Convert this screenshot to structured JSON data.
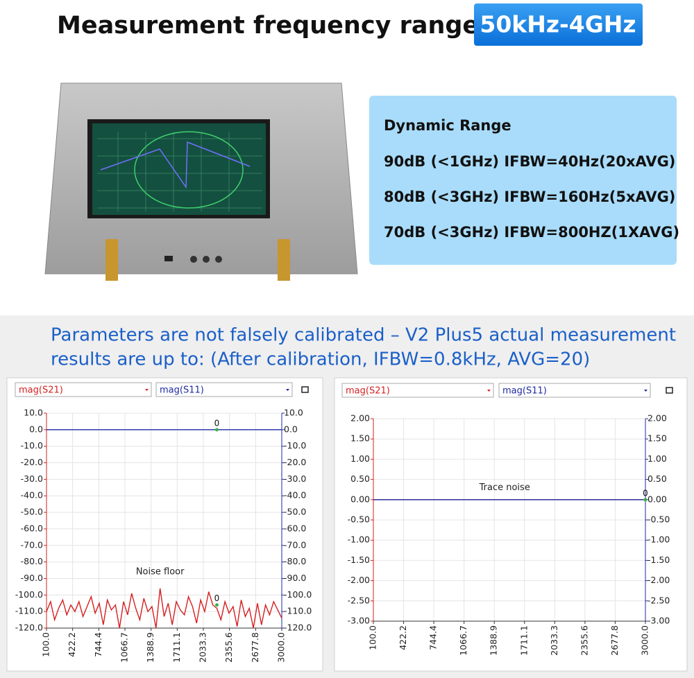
{
  "headline": {
    "title": "Measurement frequency range:",
    "badge": "50kHz-4GHz"
  },
  "dynamic_range": {
    "heading": "Dynamic Range",
    "lines": [
      "90dB (<1GHz) IFBW=40Hz(20xAVG)",
      "80dB (<3GHz) IFBW=160Hz(5xAVG)",
      "70dB (<3GHz) IFBW=800HZ(1XAVG)"
    ]
  },
  "parameters": {
    "lines": [
      "Parameters are not falsely calibrated – V2 Plus5 actual measurement",
      "results are up to: (After calibration, IFBW=0.8kHz, AVG=20)"
    ]
  },
  "chart_data": [
    {
      "type": "line",
      "x": [
        100,
        150,
        200,
        250,
        300,
        350,
        400,
        450,
        500,
        550,
        600,
        650,
        700,
        750,
        800,
        850,
        900,
        950,
        1000,
        1050,
        1100,
        1150,
        1200,
        1250,
        1300,
        1350,
        1400,
        1450,
        1500,
        1550,
        1600,
        1650,
        1700,
        1750,
        1800,
        1850,
        1900,
        1950,
        2000,
        2050,
        2100,
        2150,
        2200,
        2250,
        2300,
        2350,
        2400,
        2450,
        2500,
        2550,
        2600,
        2650,
        2700,
        2750,
        2800,
        2850,
        2900,
        2950,
        3000
      ],
      "series": [
        {
          "name": "mag(S21)",
          "color": "#d42020",
          "values": [
            -110,
            -104,
            -115,
            -108,
            -103,
            -112,
            -106,
            -110,
            -104,
            -113,
            -107,
            -101,
            -111,
            -105,
            -118,
            -103,
            -109,
            -106,
            -120,
            -104,
            -112,
            -99,
            -108,
            -115,
            -102,
            -110,
            -107,
            -120,
            -96,
            -113,
            -105,
            -118,
            -104,
            -109,
            -112,
            -101,
            -107,
            -117,
            -103,
            -110,
            -98,
            -106,
            -108,
            -115,
            -104,
            -111,
            -107,
            -119,
            -103,
            -113,
            -108,
            -120,
            -105,
            -118,
            -106,
            -112,
            -104,
            -109,
            -114
          ]
        },
        {
          "name": "mag(S11)",
          "color": "#1e2aa0",
          "axis": "y2",
          "values": [
            0,
            0,
            0,
            0,
            0,
            0,
            0,
            0,
            0,
            0,
            0,
            0,
            0,
            0,
            0,
            0,
            0,
            0,
            0,
            0,
            0,
            0,
            0,
            0,
            0,
            0,
            0,
            0,
            0,
            0,
            0,
            0,
            0,
            0,
            0,
            0,
            0,
            0,
            0,
            0,
            0,
            0,
            0,
            0,
            0,
            0,
            0,
            0,
            0,
            0,
            0,
            0,
            0,
            0,
            0,
            0,
            0,
            0,
            0
          ]
        }
      ],
      "xlim": [
        100,
        3000
      ],
      "xticks": [
        {
          "value": 100,
          "label": "100.0"
        },
        {
          "value": 422.2,
          "label": "422.2"
        },
        {
          "value": 744.4,
          "label": "744.4"
        },
        {
          "value": 1066.7,
          "label": "1066.7"
        },
        {
          "value": 1388.9,
          "label": "1388.9"
        },
        {
          "value": 1711.1,
          "label": "1711.1"
        },
        {
          "value": 2033.3,
          "label": "2033.3"
        },
        {
          "value": 2355.6,
          "label": "2355.6"
        },
        {
          "value": 2677.8,
          "label": "2677.8"
        },
        {
          "value": 3000,
          "label": "3000.0"
        }
      ],
      "ylim": [
        -120,
        10
      ],
      "yticks": [
        {
          "value": 10,
          "label": "10.0"
        },
        {
          "value": 0,
          "label": "0.0"
        },
        {
          "value": -10,
          "label": "-10.0"
        },
        {
          "value": -20,
          "label": "-20.0"
        },
        {
          "value": -30,
          "label": "-30.0"
        },
        {
          "value": -40,
          "label": "-40.0"
        },
        {
          "value": -50,
          "label": "-50.0"
        },
        {
          "value": -60,
          "label": "-60.0"
        },
        {
          "value": -70,
          "label": "-70.0"
        },
        {
          "value": -80,
          "label": "-80.0"
        },
        {
          "value": -90,
          "label": "-90.0"
        },
        {
          "value": -100,
          "label": "-100.0"
        },
        {
          "value": -110,
          "label": "-110.0"
        },
        {
          "value": -120,
          "label": "-120.0"
        }
      ],
      "y2lim": [
        -120,
        10
      ],
      "y2ticks": [
        {
          "value": 10,
          "label": "10.0"
        },
        {
          "value": 0,
          "label": "0.0"
        },
        {
          "value": -10,
          "label": "-10.0"
        },
        {
          "value": -20,
          "label": "-20.0"
        },
        {
          "value": -30,
          "label": "-30.0"
        },
        {
          "value": -40,
          "label": "-40.0"
        },
        {
          "value": -50,
          "label": "-50.0"
        },
        {
          "value": -60,
          "label": "-60.0"
        },
        {
          "value": -70,
          "label": "-70.0"
        },
        {
          "value": -80,
          "label": "-80.0"
        },
        {
          "value": -90,
          "label": "-90.0"
        },
        {
          "value": -100,
          "label": "-100.0"
        },
        {
          "value": -110,
          "label": "-110.0"
        },
        {
          "value": -120,
          "label": "-120.0"
        }
      ],
      "grid": true,
      "annotations": [
        {
          "text": "Noise floor",
          "x": 1500,
          "y": -86
        }
      ],
      "markers": [
        {
          "label": "0",
          "x": 2200,
          "y": 0
        },
        {
          "label": "0",
          "x": 2200,
          "y": -106
        }
      ]
    },
    {
      "type": "line",
      "x": [
        100,
        200,
        300,
        400,
        500,
        600,
        700,
        800,
        900,
        1000,
        1100,
        1200,
        1300,
        1400,
        1500,
        1600,
        1700,
        1800,
        1900,
        2000,
        2100,
        2200,
        2300,
        2400,
        2500,
        2600,
        2700,
        2800,
        2900,
        3000
      ],
      "series": [
        {
          "name": "mag(S21)",
          "color": "#d42020",
          "values": [
            0,
            0,
            0,
            0,
            0,
            0,
            0,
            0,
            0,
            0,
            0,
            0,
            0,
            0,
            0,
            0,
            0,
            0,
            0,
            0,
            0,
            0,
            0,
            0,
            0,
            0,
            0,
            0,
            0,
            0
          ]
        },
        {
          "name": "mag(S11)",
          "color": "#1e2aa0",
          "axis": "y2",
          "values": [
            0,
            0,
            0,
            0,
            0,
            0,
            0,
            0,
            0,
            0,
            0,
            0,
            0,
            0,
            0,
            0,
            0,
            0,
            0,
            0,
            0,
            0,
            0,
            0,
            0,
            0,
            0,
            0,
            0,
            0
          ]
        }
      ],
      "xlim": [
        100,
        3000
      ],
      "xticks": [
        {
          "value": 100,
          "label": "100.0"
        },
        {
          "value": 422.2,
          "label": "422.2"
        },
        {
          "value": 744.4,
          "label": "744.4"
        },
        {
          "value": 1066.7,
          "label": "1066.7"
        },
        {
          "value": 1388.9,
          "label": "1388.9"
        },
        {
          "value": 1711.1,
          "label": "1711.1"
        },
        {
          "value": 2033.3,
          "label": "2033.3"
        },
        {
          "value": 2355.6,
          "label": "2355.6"
        },
        {
          "value": 2677.8,
          "label": "2677.8"
        },
        {
          "value": 3000,
          "label": "3000.0"
        }
      ],
      "ylim": [
        -3,
        2
      ],
      "yticks": [
        {
          "value": 2,
          "label": "2.00"
        },
        {
          "value": 1.5,
          "label": "1.50"
        },
        {
          "value": 1,
          "label": "1.00"
        },
        {
          "value": 0.5,
          "label": "0.50"
        },
        {
          "value": 0,
          "label": "0.00"
        },
        {
          "value": -0.5,
          "label": "-0.50"
        },
        {
          "value": -1,
          "label": "-1.00"
        },
        {
          "value": -1.5,
          "label": "-1.50"
        },
        {
          "value": -2,
          "label": "-2.00"
        },
        {
          "value": -2.5,
          "label": "-2.50"
        },
        {
          "value": -3,
          "label": "-3.00"
        }
      ],
      "y2lim": [
        -3,
        2
      ],
      "y2ticks": [
        {
          "value": 2,
          "label": "2.00"
        },
        {
          "value": 1.5,
          "label": "1.50"
        },
        {
          "value": 1,
          "label": "1.00"
        },
        {
          "value": 0.5,
          "label": "0.50"
        },
        {
          "value": 0,
          "label": "0.00"
        },
        {
          "value": -0.5,
          "label": "-0.50"
        },
        {
          "value": -1,
          "label": "-1.00"
        },
        {
          "value": -1.5,
          "label": "-1.50"
        },
        {
          "value": -2,
          "label": "-2.00"
        },
        {
          "value": -2.5,
          "label": "-2.50"
        },
        {
          "value": -3,
          "label": "-3.00"
        }
      ],
      "grid": true,
      "annotations": [
        {
          "text": "Trace noise",
          "x": 1500,
          "y": 0.3
        }
      ],
      "markers": [
        {
          "label": "0",
          "x": 3000,
          "y": 0
        }
      ]
    }
  ]
}
